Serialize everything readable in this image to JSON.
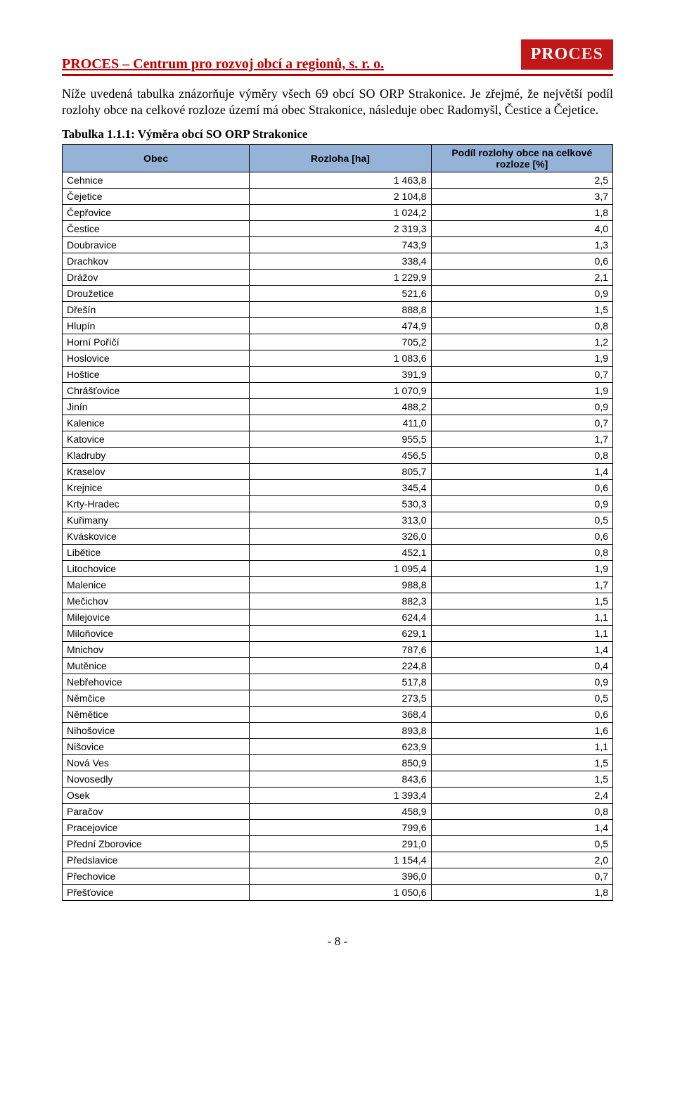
{
  "header": {
    "organization": "PROCES – Centrum pro rozvoj obcí a regionů, s. r. o.",
    "logo_part1": "PRO",
    "logo_part2": "CES",
    "badge_bg": "#c01818",
    "rule_color": "#c00000"
  },
  "intro": "Níže uvedená tabulka znázorňuje výměry všech 69 obcí SO ORP Strakonice. Je zřejmé, že největší podíl rozlohy obce na celkové rozloze území má obec Strakonice, následuje obec Radomyšl, Čestice a Čejetice.",
  "table": {
    "caption": "Tabulka 1.1.1: Výměra obcí SO ORP Strakonice",
    "header_bg": "#95b3d7",
    "columns": [
      "Obec",
      "Rozloha [ha]",
      "Podíl rozlohy obce na celkové rozloze [%]"
    ],
    "rows": [
      [
        "Cehnice",
        "1 463,8",
        "2,5"
      ],
      [
        "Čejetice",
        "2 104,8",
        "3,7"
      ],
      [
        "Čepřovice",
        "1 024,2",
        "1,8"
      ],
      [
        "Čestice",
        "2 319,3",
        "4,0"
      ],
      [
        "Doubravice",
        "743,9",
        "1,3"
      ],
      [
        "Drachkov",
        "338,4",
        "0,6"
      ],
      [
        "Drážov",
        "1 229,9",
        "2,1"
      ],
      [
        "Droužetice",
        "521,6",
        "0,9"
      ],
      [
        "Dřešín",
        "888,8",
        "1,5"
      ],
      [
        "Hlupín",
        "474,9",
        "0,8"
      ],
      [
        "Horní Poříčí",
        "705,2",
        "1,2"
      ],
      [
        "Hoslovice",
        "1 083,6",
        "1,9"
      ],
      [
        "Hoštice",
        "391,9",
        "0,7"
      ],
      [
        "Chrášťovice",
        "1 070,9",
        "1,9"
      ],
      [
        "Jinín",
        "488,2",
        "0,9"
      ],
      [
        "Kalenice",
        "411,0",
        "0,7"
      ],
      [
        "Katovice",
        "955,5",
        "1,7"
      ],
      [
        "Kladruby",
        "456,5",
        "0,8"
      ],
      [
        "Kraselov",
        "805,7",
        "1,4"
      ],
      [
        "Krejnice",
        "345,4",
        "0,6"
      ],
      [
        "Krty-Hradec",
        "530,3",
        "0,9"
      ],
      [
        "Kuřimany",
        "313,0",
        "0,5"
      ],
      [
        "Kváskovice",
        "326,0",
        "0,6"
      ],
      [
        "Libětice",
        "452,1",
        "0,8"
      ],
      [
        "Litochovice",
        "1 095,4",
        "1,9"
      ],
      [
        "Malenice",
        "988,8",
        "1,7"
      ],
      [
        "Mečichov",
        "882,3",
        "1,5"
      ],
      [
        "Milejovice",
        "624,4",
        "1,1"
      ],
      [
        "Miloňovice",
        "629,1",
        "1,1"
      ],
      [
        "Mnichov",
        "787,6",
        "1,4"
      ],
      [
        "Mutěnice",
        "224,8",
        "0,4"
      ],
      [
        "Nebřehovice",
        "517,8",
        "0,9"
      ],
      [
        "Němčice",
        "273,5",
        "0,5"
      ],
      [
        "Němětice",
        "368,4",
        "0,6"
      ],
      [
        "Nihošovice",
        "893,8",
        "1,6"
      ],
      [
        "Nišovice",
        "623,9",
        "1,1"
      ],
      [
        "Nová Ves",
        "850,9",
        "1,5"
      ],
      [
        "Novosedly",
        "843,6",
        "1,5"
      ],
      [
        "Osek",
        "1 393,4",
        "2,4"
      ],
      [
        "Paračov",
        "458,9",
        "0,8"
      ],
      [
        "Pracejovice",
        "799,6",
        "1,4"
      ],
      [
        "Přední Zborovice",
        "291,0",
        "0,5"
      ],
      [
        "Předslavice",
        "1 154,4",
        "2,0"
      ],
      [
        "Přechovice",
        "396,0",
        "0,7"
      ],
      [
        "Přešťovice",
        "1 050,6",
        "1,8"
      ]
    ]
  },
  "footer": {
    "page_label": "- 8 -"
  }
}
